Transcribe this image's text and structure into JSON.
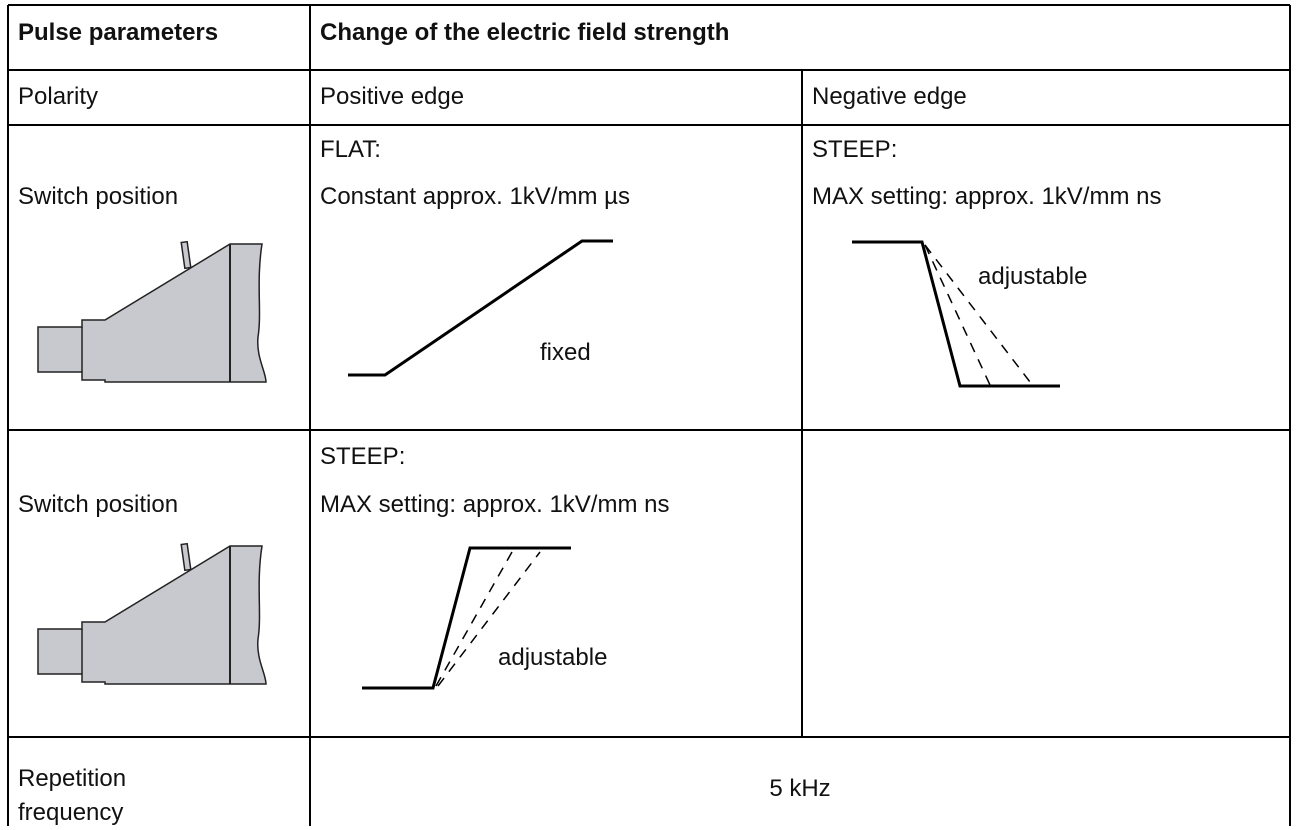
{
  "table": {
    "header": [
      "Pulse parameters",
      "Change of the electric field strength"
    ],
    "rows": [
      [
        "Polarity",
        "Positive edge",
        "Negative edge"
      ],
      {
        "label": "Switch position",
        "positive": {
          "mode": "FLAT:",
          "setting": "Constant approx. 1kV/mm µs",
          "curve_label": "fixed"
        },
        "negative": {
          "mode": "STEEP:",
          "setting": "MAX setting: approx. 1kV/mm ns",
          "curve_label": "adjustable"
        }
      },
      {
        "label": "Switch position",
        "positive": {
          "mode": "STEEP:",
          "setting": "MAX setting: approx. 1kV/mm ns",
          "curve_label": "adjustable"
        }
      },
      [
        "Repetition frequency",
        "5 kHz"
      ]
    ]
  }
}
